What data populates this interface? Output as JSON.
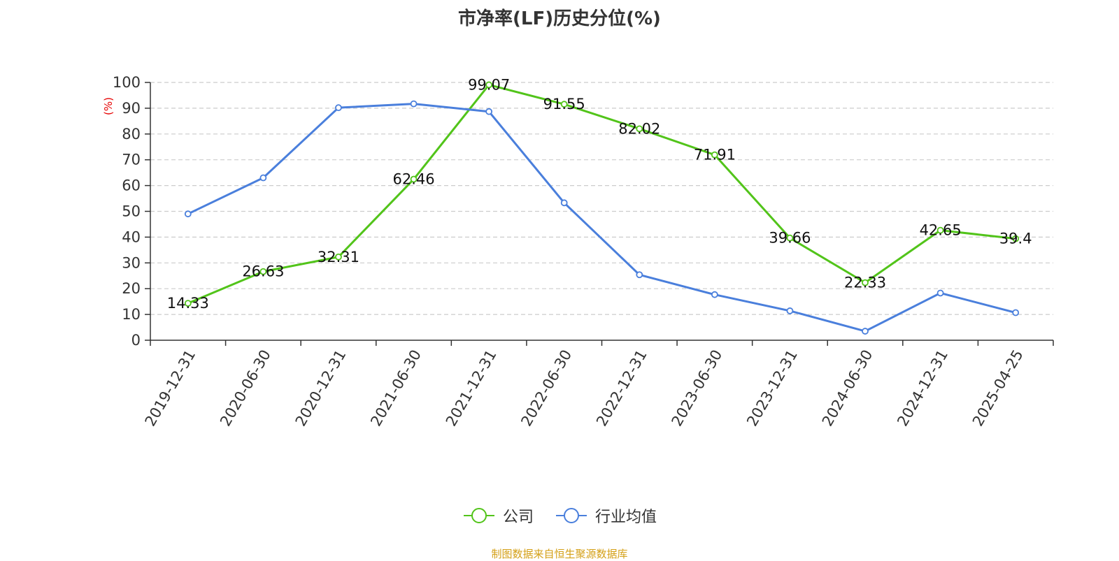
{
  "chart_data": {
    "type": "line",
    "title": "市净率(LF)历史分位(%)",
    "ylabel": "(%)",
    "ylim": [
      0,
      100
    ],
    "yticks": [
      0,
      10,
      20,
      30,
      40,
      50,
      60,
      70,
      80,
      90,
      100
    ],
    "categories": [
      "2019-12-31",
      "2020-06-30",
      "2020-12-31",
      "2021-06-30",
      "2021-12-31",
      "2022-06-30",
      "2022-12-31",
      "2023-06-30",
      "2023-12-31",
      "2024-06-30",
      "2024-12-31",
      "2025-04-25"
    ],
    "grid": "horizontal-dashed",
    "legend_position": "bottom-center",
    "series": [
      {
        "name": "公司",
        "color": "#52c41a",
        "show_labels": true,
        "values": [
          14.33,
          26.63,
          32.31,
          62.46,
          99.07,
          91.55,
          82.02,
          71.91,
          39.66,
          22.33,
          42.65,
          39.4
        ]
      },
      {
        "name": "行业均值",
        "color": "#4a7fdc",
        "show_labels": false,
        "values": [
          49.0,
          63.0,
          90.2,
          91.7,
          88.7,
          53.3,
          25.4,
          17.7,
          11.4,
          3.5,
          18.3,
          10.7
        ]
      }
    ]
  },
  "source_note": "制图数据来自恒生聚源数据库",
  "colors": {
    "axis": "#333333",
    "grid": "#cccccc",
    "ylabel": "#e60000",
    "source_note": "#d4a017"
  }
}
